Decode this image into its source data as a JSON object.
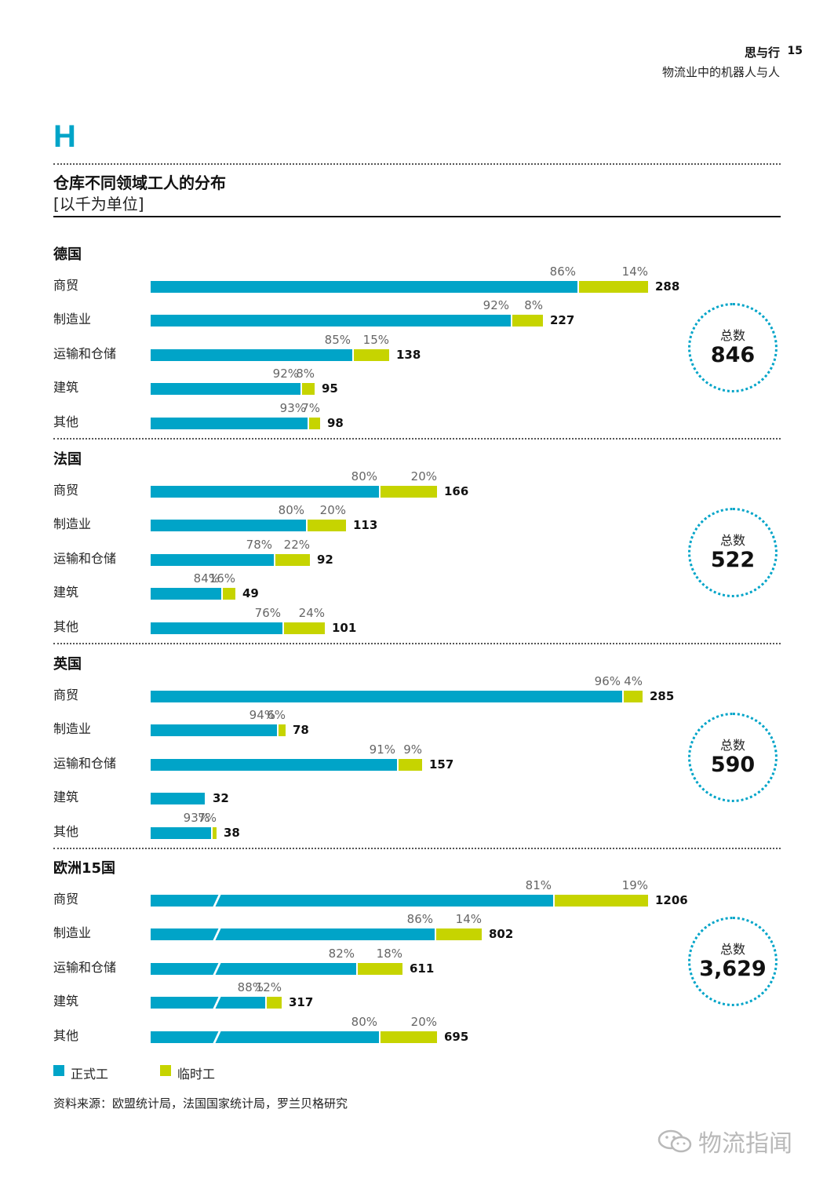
{
  "header": {
    "title": "思与行",
    "page": "15",
    "subtitle": "物流业中的机器人与人"
  },
  "section_letter": "H",
  "chart_data": {
    "type": "bar",
    "orientation": "horizontal",
    "stacked": true,
    "title": "仓库不同领域工人的分布",
    "subtitle": "[以千为单位]",
    "series_names": [
      "正式工",
      "临时工"
    ],
    "colors": {
      "permanent": "#00a4c8",
      "temporary": "#c6d400",
      "circle": "#00a4c8"
    },
    "total_label": "总数",
    "groups": [
      {
        "country": "德国",
        "total": "846",
        "scale_max": 288,
        "broken_axis": false,
        "rows": [
          {
            "category": "商贸",
            "total": "288",
            "value": 288,
            "perm_pct": 86,
            "temp_pct": 14,
            "perm_label": "86%",
            "temp_label": "14%"
          },
          {
            "category": "制造业",
            "total": "227",
            "value": 227,
            "perm_pct": 92,
            "temp_pct": 8,
            "perm_label": "92%",
            "temp_label": "8%"
          },
          {
            "category": "运输和仓储",
            "total": "138",
            "value": 138,
            "perm_pct": 85,
            "temp_pct": 15,
            "perm_label": "85%",
            "temp_label": "15%"
          },
          {
            "category": "建筑",
            "total": "95",
            "value": 95,
            "perm_pct": 92,
            "temp_pct": 8,
            "perm_label": "92%",
            "temp_label": "8%"
          },
          {
            "category": "其他",
            "total": "98",
            "value": 98,
            "perm_pct": 93,
            "temp_pct": 7,
            "perm_label": "93%",
            "temp_label": "7%"
          }
        ]
      },
      {
        "country": "法国",
        "total": "522",
        "scale_max": 288,
        "broken_axis": false,
        "rows": [
          {
            "category": "商贸",
            "total": "166",
            "value": 166,
            "perm_pct": 80,
            "temp_pct": 20,
            "perm_label": "80%",
            "temp_label": "20%"
          },
          {
            "category": "制造业",
            "total": "113",
            "value": 113,
            "perm_pct": 80,
            "temp_pct": 20,
            "perm_label": "80%",
            "temp_label": "20%"
          },
          {
            "category": "运输和仓储",
            "total": "92",
            "value": 92,
            "perm_pct": 78,
            "temp_pct": 22,
            "perm_label": "78%",
            "temp_label": "22%"
          },
          {
            "category": "建筑",
            "total": "49",
            "value": 49,
            "perm_pct": 84,
            "temp_pct": 16,
            "perm_label": "84%",
            "temp_label": "16%"
          },
          {
            "category": "其他",
            "total": "101",
            "value": 101,
            "perm_pct": 76,
            "temp_pct": 24,
            "perm_label": "76%",
            "temp_label": "24%"
          }
        ]
      },
      {
        "country": "英国",
        "total": "590",
        "scale_max": 288,
        "broken_axis": false,
        "rows": [
          {
            "category": "商贸",
            "total": "285",
            "value": 285,
            "perm_pct": 96,
            "temp_pct": 4,
            "perm_label": "96%",
            "temp_label": "4%"
          },
          {
            "category": "制造业",
            "total": "78",
            "value": 78,
            "perm_pct": 94,
            "temp_pct": 6,
            "perm_label": "94%",
            "temp_label": "6%"
          },
          {
            "category": "运输和仓储",
            "total": "157",
            "value": 157,
            "perm_pct": 91,
            "temp_pct": 9,
            "perm_label": "91%",
            "temp_label": "9%"
          },
          {
            "category": "建筑",
            "total": "32",
            "value": 32,
            "perm_pct": 100,
            "temp_pct": 0,
            "perm_label": "",
            "temp_label": ""
          },
          {
            "category": "其他",
            "total": "38",
            "value": 38,
            "perm_pct": 93,
            "temp_pct": 7,
            "perm_label": "93%",
            "temp_label": "7%"
          }
        ]
      },
      {
        "country": "欧洲15国",
        "total": "3,629",
        "scale_max": 1206,
        "broken_axis": true,
        "rows": [
          {
            "category": "商贸",
            "total": "1206",
            "value": 1206,
            "perm_pct": 81,
            "temp_pct": 19,
            "perm_label": "81%",
            "temp_label": "19%"
          },
          {
            "category": "制造业",
            "total": "802",
            "value": 802,
            "perm_pct": 86,
            "temp_pct": 14,
            "perm_label": "86%",
            "temp_label": "14%"
          },
          {
            "category": "运输和仓储",
            "total": "611",
            "value": 611,
            "perm_pct": 82,
            "temp_pct": 18,
            "perm_label": "82%",
            "temp_label": "18%"
          },
          {
            "category": "建筑",
            "total": "317",
            "value": 317,
            "perm_pct": 88,
            "temp_pct": 12,
            "perm_label": "88%",
            "temp_label": "12%"
          },
          {
            "category": "其他",
            "total": "695",
            "value": 695,
            "perm_pct": 80,
            "temp_pct": 20,
            "perm_label": "80%",
            "temp_label": "20%"
          }
        ]
      }
    ]
  },
  "legend": {
    "permanent": "正式工",
    "temporary": "临时工"
  },
  "source": "资料来源：欧盟统计局，法国国家统计局，罗兰贝格研究",
  "watermark": "物流指闻"
}
